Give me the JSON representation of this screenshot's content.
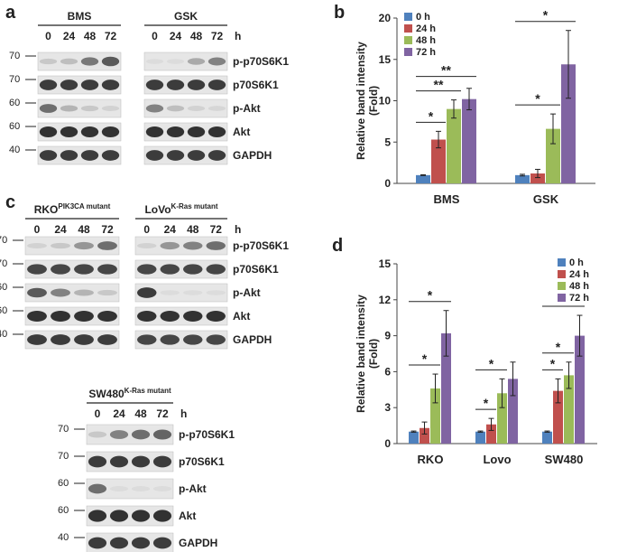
{
  "panels": {
    "a": "a",
    "b": "b",
    "c": "c",
    "d": "d"
  },
  "legend": [
    {
      "label": "0 h",
      "color": "#4f81bd"
    },
    {
      "label": "24 h",
      "color": "#c0504d"
    },
    {
      "label": "48 h",
      "color": "#9bbb59"
    },
    {
      "label": "72 h",
      "color": "#8064a2"
    }
  ],
  "blot_a": {
    "groups": [
      "BMS",
      "GSK"
    ],
    "lanes": [
      "0",
      "24",
      "48",
      "72"
    ],
    "unit": "h",
    "mw": [
      "70",
      "70",
      "60",
      "60",
      "40"
    ],
    "proteins": [
      "p-p70S6K1",
      "p70S6K1",
      "p-Akt",
      "Akt",
      "GAPDH"
    ]
  },
  "blot_c": {
    "groups": [
      {
        "base": "RKO",
        "sup": "PIK3CA mutant"
      },
      {
        "base": "LoVo",
        "sup": "K-Ras mutant"
      },
      {
        "base": "SW480",
        "sup": "K-Ras mutant"
      }
    ],
    "lanes": [
      "0",
      "24",
      "48",
      "72"
    ],
    "unit": "h",
    "mw": [
      "70",
      "70",
      "60",
      "60",
      "40"
    ],
    "proteins": [
      "p-p70S6K1",
      "p70S6K1",
      "p-Akt",
      "Akt",
      "GAPDH"
    ]
  },
  "chart_data": [
    {
      "panel": "b",
      "type": "bar",
      "ylabel": "Relative band intensity (Fold)",
      "ylim": [
        0,
        20
      ],
      "yticks": [
        0,
        5,
        10,
        15,
        20
      ],
      "categories": [
        "BMS",
        "GSK"
      ],
      "series": [
        {
          "name": "0 h",
          "values": [
            1,
            1
          ],
          "err": [
            0.05,
            0.1
          ]
        },
        {
          "name": "24 h",
          "values": [
            5.3,
            1.2
          ],
          "err": [
            1.0,
            0.5
          ]
        },
        {
          "name": "48 h",
          "values": [
            9.0,
            6.6
          ],
          "err": [
            1.1,
            1.8
          ]
        },
        {
          "name": "72 h",
          "values": [
            10.2,
            14.4
          ],
          "err": [
            1.3,
            4.1
          ]
        }
      ],
      "significance": [
        {
          "cat": 0,
          "from": 0,
          "to": 1,
          "label": "*"
        },
        {
          "cat": 0,
          "from": 0,
          "to": 2,
          "label": "**"
        },
        {
          "cat": 0,
          "from": 0,
          "to": 3,
          "label": "**"
        },
        {
          "cat": 1,
          "from": 0,
          "to": 2,
          "label": "*"
        },
        {
          "cat": 1,
          "from": 0,
          "to": 3,
          "label": "*"
        }
      ],
      "legend_position": "top-left"
    },
    {
      "panel": "d",
      "type": "bar",
      "ylabel": "Relative band intensity (Fold)",
      "ylim": [
        0,
        15
      ],
      "yticks": [
        0,
        3,
        6,
        9,
        12,
        15
      ],
      "categories": [
        "RKO",
        "Lovo",
        "SW480"
      ],
      "series": [
        {
          "name": "0 h",
          "values": [
            1,
            1,
            1
          ],
          "err": [
            0.05,
            0.05,
            0.05
          ]
        },
        {
          "name": "24 h",
          "values": [
            1.3,
            1.6,
            4.4
          ],
          "err": [
            0.5,
            0.5,
            1.0
          ]
        },
        {
          "name": "48 h",
          "values": [
            4.6,
            4.2,
            5.7
          ],
          "err": [
            1.2,
            1.2,
            1.1
          ]
        },
        {
          "name": "72 h",
          "values": [
            9.2,
            5.4,
            9.0
          ],
          "err": [
            1.9,
            1.4,
            1.7
          ]
        }
      ],
      "significance": [
        {
          "cat": 0,
          "from": 0,
          "to": 2,
          "label": "*"
        },
        {
          "cat": 0,
          "from": 0,
          "to": 3,
          "label": "*"
        },
        {
          "cat": 1,
          "from": 0,
          "to": 1,
          "label": "*"
        },
        {
          "cat": 1,
          "from": 0,
          "to": 2,
          "label": "*"
        },
        {
          "cat": 2,
          "from": 0,
          "to": 1,
          "label": "*"
        },
        {
          "cat": 2,
          "from": 0,
          "to": 2,
          "label": "*"
        },
        {
          "cat": 2,
          "from": 0,
          "to": 3,
          "label": "*"
        }
      ],
      "legend_position": "top-right"
    }
  ]
}
